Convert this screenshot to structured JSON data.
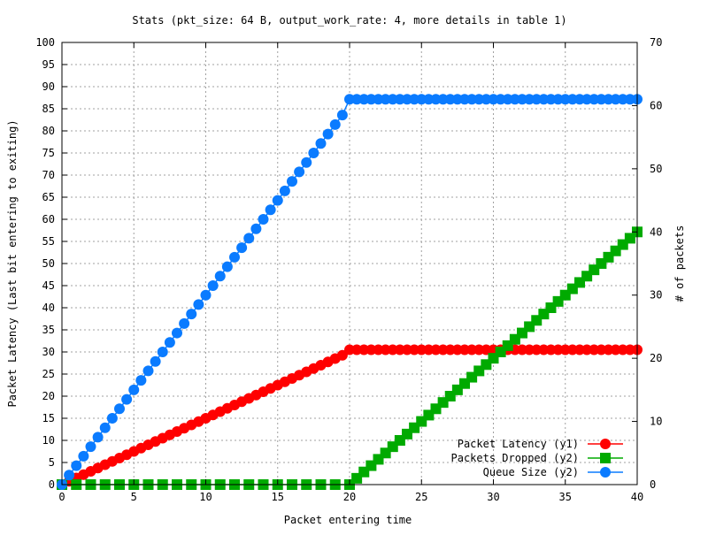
{
  "chart_data": {
    "type": "line",
    "title": "Stats (pkt_size: 64 B, output_work_rate: 4, more details in table 1)",
    "xlabel": "Packet entering time",
    "ylabel": "Packet Latency (Last bit entering to exiting)",
    "y2label": "# of packets",
    "xlim": [
      0,
      40
    ],
    "ylim": [
      0,
      100
    ],
    "y2lim": [
      0,
      70
    ],
    "grid": true,
    "legend_position": "bottom-right",
    "xticks": [
      0,
      5,
      10,
      15,
      20,
      25,
      30,
      35,
      40
    ],
    "yticks": [
      0,
      5,
      10,
      15,
      20,
      25,
      30,
      35,
      40,
      45,
      50,
      55,
      60,
      65,
      70,
      75,
      80,
      85,
      90,
      95,
      100
    ],
    "y2ticks": [
      0,
      10,
      20,
      30,
      40,
      50,
      60,
      70
    ],
    "series": [
      {
        "name": "Packet Latency (y1)",
        "axis": "y1",
        "marker": "circle",
        "color": "#ff0000",
        "x": [
          0,
          0.5,
          1,
          1.5,
          2,
          2.5,
          3,
          3.5,
          4,
          4.5,
          5,
          5.5,
          6,
          6.5,
          7,
          7.5,
          8,
          8.5,
          9,
          9.5,
          10,
          10.5,
          11,
          11.5,
          12,
          12.5,
          13,
          13.5,
          14,
          14.5,
          15,
          15.5,
          16,
          16.5,
          17,
          17.5,
          18,
          18.5,
          19,
          19.5,
          20,
          20.5,
          21,
          21.5,
          22,
          22.5,
          23,
          23.5,
          24,
          24.5,
          25,
          25.5,
          26,
          26.5,
          27,
          27.5,
          28,
          28.5,
          29,
          29.5,
          30,
          30.5,
          31,
          31.5,
          32,
          32.5,
          33,
          33.5,
          34,
          34.5,
          35,
          35.5,
          36,
          36.5,
          37,
          37.5,
          38,
          38.5,
          39,
          39.5,
          40
        ],
        "values": [
          0,
          0.75,
          1.5,
          2.25,
          3,
          3.75,
          4.5,
          5.25,
          6,
          6.75,
          7.5,
          8.25,
          9,
          9.75,
          10.5,
          11.25,
          12,
          12.75,
          13.5,
          14.25,
          15,
          15.75,
          16.5,
          17.25,
          18,
          18.75,
          19.5,
          20.25,
          21,
          21.75,
          22.5,
          23.25,
          24,
          24.75,
          25.5,
          26.25,
          27,
          27.75,
          28.5,
          29.25,
          30.5,
          30.5,
          30.5,
          30.5,
          30.5,
          30.5,
          30.5,
          30.5,
          30.5,
          30.5,
          30.5,
          30.5,
          30.5,
          30.5,
          30.5,
          30.5,
          30.5,
          30.5,
          30.5,
          30.5,
          30.5,
          30.5,
          30.5,
          30.5,
          30.5,
          30.5,
          30.5,
          30.5,
          30.5,
          30.5,
          30.5,
          30.5,
          30.5,
          30.5,
          30.5,
          30.5,
          30.5,
          30.5,
          30.5,
          30.5,
          30.5
        ]
      },
      {
        "name": "Packets Dropped (y2)",
        "axis": "y2",
        "marker": "square",
        "color": "#00aa00",
        "x": [
          0,
          1,
          2,
          3,
          4,
          5,
          6,
          7,
          8,
          9,
          10,
          11,
          12,
          13,
          14,
          15,
          16,
          17,
          18,
          19,
          20,
          20.5,
          21,
          21.5,
          22,
          22.5,
          23,
          23.5,
          24,
          24.5,
          25,
          25.5,
          26,
          26.5,
          27,
          27.5,
          28,
          28.5,
          29,
          29.5,
          30,
          30.5,
          31,
          31.5,
          32,
          32.5,
          33,
          33.5,
          34,
          34.5,
          35,
          35.5,
          36,
          36.5,
          37,
          37.5,
          38,
          38.5,
          39,
          39.5,
          40
        ],
        "values": [
          0,
          0,
          0,
          0,
          0,
          0,
          0,
          0,
          0,
          0,
          0,
          0,
          0,
          0,
          0,
          0,
          0,
          0,
          0,
          0,
          0,
          1,
          2,
          3,
          4,
          5,
          6,
          7,
          8,
          9,
          10,
          11,
          12,
          13,
          14,
          15,
          16,
          17,
          18,
          19,
          20,
          21,
          22,
          23,
          24,
          25,
          26,
          27,
          28,
          29,
          30,
          31,
          32,
          33,
          34,
          35,
          36,
          37,
          38,
          39,
          40
        ]
      },
      {
        "name": "Queue Size (y2)",
        "axis": "y2",
        "marker": "circle",
        "color": "#0a7bff",
        "x": [
          0,
          0.5,
          1,
          1.5,
          2,
          2.5,
          3,
          3.5,
          4,
          4.5,
          5,
          5.5,
          6,
          6.5,
          7,
          7.5,
          8,
          8.5,
          9,
          9.5,
          10,
          10.5,
          11,
          11.5,
          12,
          12.5,
          13,
          13.5,
          14,
          14.5,
          15,
          15.5,
          16,
          16.5,
          17,
          17.5,
          18,
          18.5,
          19,
          19.5,
          20,
          20.5,
          21,
          21.5,
          22,
          22.5,
          23,
          23.5,
          24,
          24.5,
          25,
          25.5,
          26,
          26.5,
          27,
          27.5,
          28,
          28.5,
          29,
          29.5,
          30,
          30.5,
          31,
          31.5,
          32,
          32.5,
          33,
          33.5,
          34,
          34.5,
          35,
          35.5,
          36,
          36.5,
          37,
          37.5,
          38,
          38.5,
          39,
          39.5,
          40
        ],
        "values": [
          0,
          1.5,
          3,
          4.5,
          6,
          7.5,
          9,
          10.5,
          12,
          13.5,
          15,
          16.5,
          18,
          19.5,
          21,
          22.5,
          24,
          25.5,
          27,
          28.5,
          30,
          31.5,
          33,
          34.5,
          36,
          37.5,
          39,
          40.5,
          42,
          43.5,
          45,
          46.5,
          48,
          49.5,
          51,
          52.5,
          54,
          55.5,
          57,
          58.5,
          61,
          61,
          61,
          61,
          61,
          61,
          61,
          61,
          61,
          61,
          61,
          61,
          61,
          61,
          61,
          61,
          61,
          61,
          61,
          61,
          61,
          61,
          61,
          61,
          61,
          61,
          61,
          61,
          61,
          61,
          61,
          61,
          61,
          61,
          61,
          61,
          61,
          61,
          61,
          61,
          61
        ]
      }
    ]
  }
}
